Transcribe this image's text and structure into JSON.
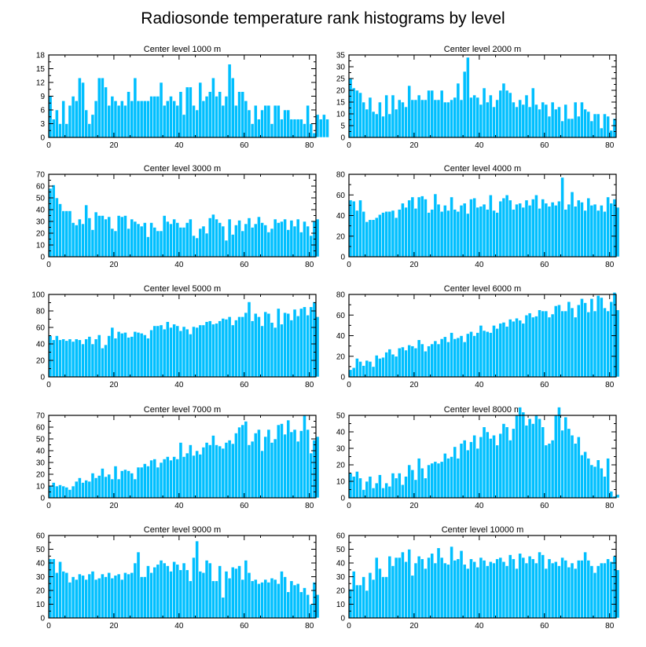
{
  "title": "Radiosonde temperature rank histograms by level",
  "colors": {
    "bar": "#00bfff",
    "axis": "#000000",
    "background": "#ffffff"
  },
  "chart_data": [
    {
      "type": "bar",
      "title": "Center level 1000 m",
      "xlim": [
        0,
        82
      ],
      "ylim": [
        0,
        18
      ],
      "xticks": [
        0,
        20,
        40,
        60,
        80
      ],
      "yticks": [
        0,
        3,
        6,
        9,
        12,
        15,
        18
      ],
      "values": [
        9,
        4,
        6,
        3,
        8,
        3,
        7,
        9,
        8,
        13,
        12,
        6,
        3,
        5,
        8,
        13,
        13,
        11,
        7,
        9,
        8,
        7,
        8,
        7,
        10,
        8,
        13,
        8,
        8,
        8,
        8,
        9,
        9,
        9,
        12,
        7,
        8,
        9,
        8,
        7,
        10,
        5,
        11,
        11,
        7,
        6,
        12,
        8,
        9,
        10,
        13,
        9,
        10,
        7,
        9,
        16,
        13,
        7,
        10,
        10,
        8,
        6,
        3,
        7,
        4,
        6,
        7,
        7,
        3,
        7,
        7,
        4,
        6,
        6,
        4,
        4,
        4,
        4,
        3,
        7,
        3,
        1,
        5,
        4,
        5,
        4
      ]
    },
    {
      "type": "bar",
      "title": "Center level 2000 m",
      "xlim": [
        0,
        82
      ],
      "ylim": [
        0,
        35
      ],
      "xticks": [
        0,
        20,
        40,
        60,
        80
      ],
      "yticks": [
        0,
        5,
        10,
        15,
        20,
        25,
        30,
        35
      ],
      "values": [
        25,
        21,
        20,
        19,
        15,
        12,
        17,
        11,
        10,
        15,
        9,
        18,
        10,
        18,
        12,
        16,
        15,
        13,
        22,
        16,
        16,
        18,
        16,
        16,
        20,
        20,
        16,
        16,
        20,
        15,
        15,
        16,
        17,
        23,
        16,
        28,
        34,
        17,
        18,
        17,
        14,
        21,
        15,
        18,
        13,
        16,
        20,
        23,
        20,
        19,
        15,
        13,
        16,
        14,
        18,
        13,
        21,
        14,
        12,
        15,
        14,
        9,
        15,
        12,
        13,
        7,
        14,
        8,
        8,
        15,
        9,
        15,
        12,
        11,
        7,
        10,
        10,
        4,
        10,
        9,
        3,
        8
      ]
    },
    {
      "type": "bar",
      "title": "Center level 3000 m",
      "xlim": [
        0,
        82
      ],
      "ylim": [
        0,
        70
      ],
      "xticks": [
        0,
        20,
        40,
        60,
        80
      ],
      "yticks": [
        0,
        10,
        20,
        30,
        40,
        50,
        60,
        70
      ],
      "values": [
        58,
        61,
        50,
        45,
        39,
        39,
        39,
        29,
        27,
        32,
        28,
        44,
        33,
        23,
        38,
        35,
        35,
        32,
        34,
        24,
        22,
        35,
        34,
        35,
        24,
        32,
        30,
        28,
        26,
        29,
        17,
        29,
        25,
        22,
        22,
        35,
        30,
        28,
        32,
        29,
        25,
        25,
        29,
        32,
        18,
        16,
        24,
        26,
        20,
        33,
        36,
        32,
        29,
        26,
        14,
        32,
        19,
        27,
        31,
        22,
        28,
        33,
        25,
        28,
        34,
        29,
        27,
        21,
        24,
        32,
        29,
        30,
        32,
        23,
        31,
        26,
        32,
        21,
        30,
        26,
        18,
        30,
        32
      ]
    },
    {
      "type": "bar",
      "title": "Center level 4000 m",
      "xlim": [
        0,
        82
      ],
      "ylim": [
        0,
        80
      ],
      "xticks": [
        0,
        20,
        40,
        60,
        80
      ],
      "yticks": [
        0,
        20,
        40,
        60,
        80
      ],
      "values": [
        55,
        54,
        45,
        55,
        44,
        34,
        36,
        36,
        38,
        41,
        43,
        44,
        44,
        45,
        38,
        46,
        52,
        48,
        55,
        58,
        47,
        58,
        59,
        56,
        43,
        46,
        61,
        51,
        44,
        50,
        45,
        58,
        46,
        44,
        50,
        52,
        42,
        56,
        57,
        48,
        49,
        51,
        46,
        60,
        45,
        43,
        54,
        57,
        60,
        55,
        46,
        51,
        52,
        48,
        55,
        50,
        56,
        60,
        47,
        56,
        52,
        49,
        53,
        50,
        54,
        77,
        46,
        51,
        63,
        49,
        55,
        53,
        45,
        57,
        50,
        51,
        45,
        50,
        44,
        58,
        52,
        56,
        48
      ]
    },
    {
      "type": "bar",
      "title": "Center level 5000 m",
      "xlim": [
        0,
        82
      ],
      "ylim": [
        0,
        100
      ],
      "xticks": [
        0,
        20,
        40,
        60,
        80
      ],
      "yticks": [
        0,
        20,
        40,
        60,
        80,
        100
      ],
      "values": [
        50,
        45,
        50,
        45,
        46,
        44,
        46,
        43,
        46,
        45,
        40,
        46,
        49,
        40,
        46,
        51,
        35,
        39,
        50,
        60,
        47,
        55,
        53,
        54,
        48,
        49,
        55,
        54,
        53,
        51,
        47,
        57,
        62,
        62,
        63,
        58,
        67,
        60,
        64,
        62,
        56,
        61,
        58,
        52,
        61,
        60,
        63,
        63,
        67,
        68,
        64,
        65,
        68,
        71,
        70,
        73,
        63,
        69,
        73,
        73,
        78,
        91,
        68,
        77,
        73,
        62,
        79,
        77,
        66,
        60,
        83,
        64,
        78,
        77,
        69,
        82,
        74,
        83,
        85,
        75,
        85,
        91,
        73
      ]
    },
    {
      "type": "bar",
      "title": "Center level 6000 m",
      "xlim": [
        0,
        82
      ],
      "ylim": [
        0,
        80
      ],
      "xticks": [
        0,
        20,
        40,
        60,
        80
      ],
      "yticks": [
        0,
        20,
        40,
        60,
        80
      ],
      "values": [
        7,
        9,
        18,
        15,
        11,
        16,
        15,
        10,
        21,
        18,
        19,
        24,
        27,
        22,
        20,
        28,
        29,
        26,
        31,
        30,
        28,
        36,
        32,
        25,
        30,
        32,
        35,
        32,
        37,
        39,
        34,
        43,
        37,
        38,
        40,
        34,
        42,
        44,
        40,
        43,
        50,
        45,
        44,
        43,
        50,
        47,
        52,
        53,
        49,
        56,
        54,
        57,
        55,
        52,
        60,
        62,
        58,
        59,
        65,
        64,
        64,
        58,
        61,
        69,
        70,
        64,
        64,
        73,
        67,
        58,
        70,
        76,
        72,
        63,
        76,
        64,
        79,
        77,
        67,
        64,
        73,
        82,
        65
      ]
    },
    {
      "type": "bar",
      "title": "Center level 7000 m",
      "xlim": [
        0,
        82
      ],
      "ylim": [
        0,
        70
      ],
      "xticks": [
        0,
        20,
        40,
        60,
        80
      ],
      "yticks": [
        0,
        10,
        20,
        30,
        40,
        50,
        60,
        70
      ],
      "values": [
        10,
        13,
        10,
        11,
        10,
        9,
        7,
        10,
        14,
        17,
        13,
        15,
        14,
        21,
        17,
        19,
        25,
        18,
        20,
        16,
        27,
        16,
        23,
        24,
        23,
        21,
        16,
        26,
        26,
        29,
        27,
        32,
        33,
        26,
        30,
        33,
        35,
        32,
        35,
        33,
        47,
        35,
        38,
        45,
        36,
        40,
        37,
        43,
        47,
        45,
        53,
        45,
        44,
        42,
        47,
        49,
        46,
        55,
        60,
        62,
        65,
        45,
        48,
        55,
        58,
        40,
        52,
        58,
        47,
        50,
        62,
        63,
        54,
        66,
        56,
        58,
        48,
        57,
        70,
        58,
        38,
        49,
        52
      ]
    },
    {
      "type": "bar",
      "title": "Center level 8000 m",
      "xlim": [
        0,
        82
      ],
      "ylim": [
        0,
        50
      ],
      "xticks": [
        0,
        20,
        40,
        60,
        80
      ],
      "yticks": [
        0,
        10,
        20,
        30,
        40,
        50
      ],
      "values": [
        15,
        13,
        16,
        12,
        5,
        10,
        13,
        6,
        9,
        14,
        6,
        9,
        7,
        15,
        12,
        15,
        8,
        13,
        20,
        17,
        11,
        24,
        18,
        12,
        20,
        21,
        22,
        21,
        22,
        27,
        24,
        25,
        31,
        24,
        33,
        35,
        29,
        34,
        38,
        30,
        37,
        43,
        40,
        36,
        38,
        32,
        39,
        45,
        43,
        35,
        42,
        50,
        55,
        52,
        44,
        48,
        45,
        50,
        48,
        43,
        32,
        33,
        35,
        50,
        55,
        41,
        49,
        42,
        38,
        33,
        37,
        26,
        28,
        24,
        20,
        19,
        23,
        18,
        13,
        24,
        4,
        1,
        2
      ]
    },
    {
      "type": "bar",
      "title": "Center level 9000 m",
      "xlim": [
        0,
        82
      ],
      "ylim": [
        0,
        60
      ],
      "xticks": [
        0,
        20,
        40,
        60,
        80
      ],
      "yticks": [
        0,
        10,
        20,
        30,
        40,
        50,
        60
      ],
      "values": [
        43,
        43,
        33,
        41,
        34,
        33,
        26,
        30,
        28,
        32,
        31,
        28,
        32,
        34,
        28,
        29,
        32,
        30,
        33,
        29,
        31,
        32,
        28,
        33,
        32,
        33,
        40,
        48,
        30,
        30,
        38,
        33,
        37,
        39,
        42,
        40,
        38,
        34,
        41,
        39,
        35,
        40,
        35,
        27,
        44,
        56,
        34,
        33,
        42,
        40,
        27,
        27,
        38,
        15,
        34,
        29,
        37,
        36,
        38,
        28,
        42,
        33,
        27,
        28,
        25,
        26,
        28,
        26,
        29,
        28,
        25,
        34,
        30,
        19,
        27,
        24,
        25,
        19,
        22,
        17,
        10,
        26,
        17
      ]
    },
    {
      "type": "bar",
      "title": "Center level 10000 m",
      "xlim": [
        0,
        82
      ],
      "ylim": [
        0,
        60
      ],
      "xticks": [
        0,
        20,
        40,
        60,
        80
      ],
      "yticks": [
        0,
        10,
        20,
        30,
        40,
        50,
        60
      ],
      "values": [
        21,
        34,
        24,
        24,
        30,
        20,
        33,
        28,
        44,
        36,
        30,
        30,
        45,
        38,
        44,
        44,
        48,
        41,
        50,
        31,
        40,
        45,
        43,
        36,
        44,
        47,
        40,
        51,
        44,
        40,
        39,
        52,
        42,
        43,
        49,
        39,
        36,
        43,
        41,
        37,
        44,
        42,
        38,
        41,
        40,
        43,
        44,
        41,
        38,
        46,
        43,
        36,
        47,
        44,
        40,
        45,
        43,
        40,
        48,
        46,
        36,
        43,
        40,
        41,
        38,
        44,
        42,
        37,
        40,
        36,
        42,
        42,
        48,
        42,
        38,
        33,
        38,
        40,
        40,
        43,
        41,
        45,
        35
      ]
    }
  ]
}
